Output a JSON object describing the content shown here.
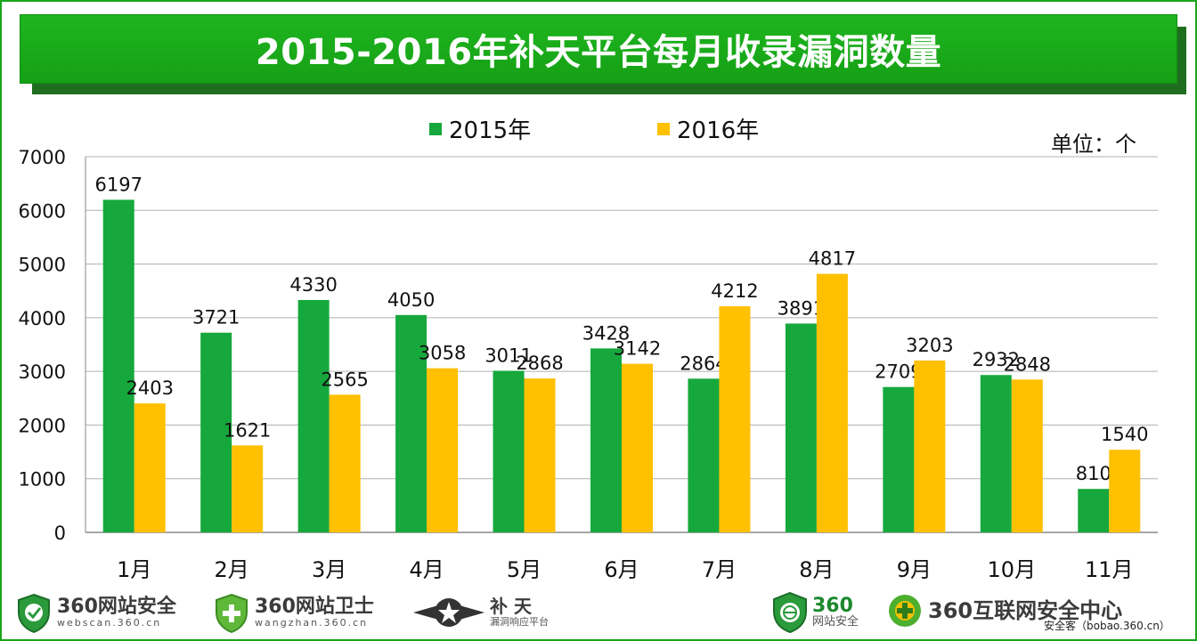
{
  "title": "2015-2016年补天平台每月收录漏洞数量",
  "unit_label": "单位：个",
  "colors": {
    "series_2015": "#16a83c",
    "series_2016": "#ffc000",
    "title_bar": "#1aa51a",
    "grid": "#b0b0b0"
  },
  "chart_data": {
    "type": "bar",
    "title": "2015-2016年补天平台每月收录漏洞数量",
    "xlabel": "",
    "ylabel": "",
    "unit": "单位：个",
    "categories": [
      "1月",
      "2月",
      "3月",
      "4月",
      "5月",
      "6月",
      "7月",
      "8月",
      "9月",
      "10月",
      "11月"
    ],
    "series": [
      {
        "name": "2015年",
        "values": [
          6197,
          3721,
          4330,
          4050,
          3011,
          3428,
          2864,
          3891,
          2709,
          2932,
          810
        ]
      },
      {
        "name": "2016年",
        "values": [
          2403,
          1621,
          2565,
          3058,
          2868,
          3142,
          4212,
          4817,
          3203,
          2848,
          1540
        ]
      }
    ],
    "ylim": [
      0,
      7000
    ],
    "yticks": [
      0,
      1000,
      2000,
      3000,
      4000,
      5000,
      6000,
      7000
    ],
    "ytick_labels": [
      "0",
      "1000",
      "2000",
      "3000",
      "4000",
      "5000",
      "6000",
      "7000"
    ],
    "grid": true,
    "legend_position": "top-center"
  },
  "footer": {
    "logos": [
      {
        "name": "360网站安全",
        "sub": "webscan.360.cn",
        "icon": "shield-check-icon"
      },
      {
        "name": "360网站卫士",
        "sub": "wangzhan.360.cn",
        "icon": "shield-plus-icon"
      },
      {
        "name": "补 天",
        "sub": "漏洞响应平台",
        "icon": "star-wing-icon"
      },
      {
        "name": "360",
        "sub": "网站安全",
        "icon": "shield-globe-icon"
      },
      {
        "name": "360互联网安全中心",
        "sub": "",
        "icon": "security-center-icon"
      }
    ],
    "source": "安全客（bobao.360.cn）"
  }
}
